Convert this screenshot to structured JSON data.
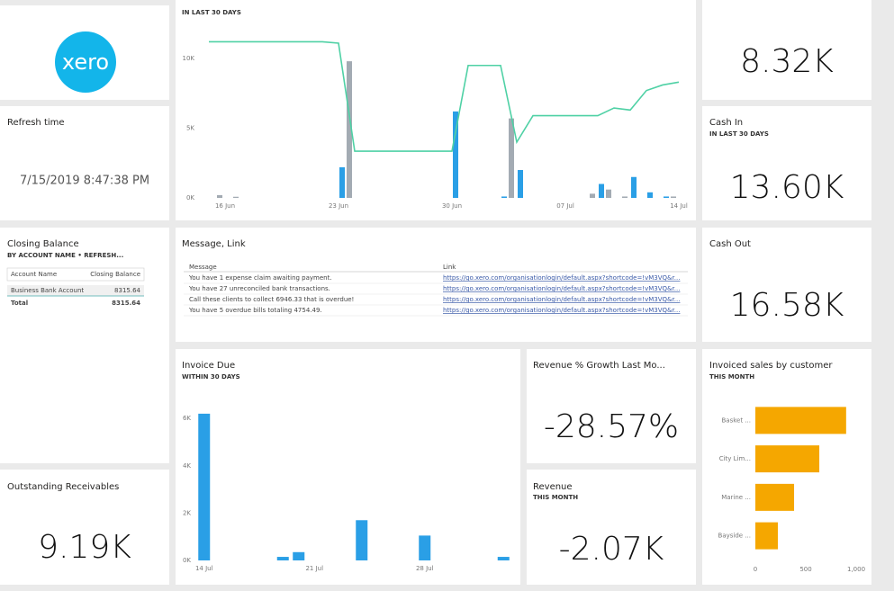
{
  "logo": "xero",
  "refresh_card": {
    "title": "Refresh time",
    "value": "7/15/2019 8:47:38 PM"
  },
  "cards": [
    {
      "value": "8.32K"
    },
    {
      "title": "Cash In",
      "subtitle": "IN LAST 30 DAYS",
      "value": "13.60K"
    },
    {
      "title": "Cash Out",
      "value": "16.58K"
    },
    {
      "title": "Outstanding Receivables",
      "value": "9.19K"
    },
    {
      "title": "Revenue % Growth Last Mo...",
      "value": "-28.57%"
    },
    {
      "title": "Revenue",
      "subtitle": "THIS MONTH",
      "value": "-2.07K"
    }
  ],
  "closing_balance": {
    "title": "Closing Balance",
    "subtitle": "BY ACCOUNT NAME  •  REFRESH...",
    "headers": [
      "Account Name",
      "Closing Balance"
    ],
    "rows": [
      [
        "Business Bank Account",
        "8315.64"
      ]
    ],
    "total": [
      "Total",
      "8315.64"
    ]
  },
  "message_link": {
    "title": "Message, Link",
    "headers": [
      "Message",
      "Link"
    ],
    "rows": [
      [
        "You have 1 expense claim awaiting payment.",
        "https://go.xero.com/organisationlogin/default.aspx?shortcode=!vM3VQ&r..."
      ],
      [
        "You have 27 unreconciled bank transactions.",
        "https://go.xero.com/organisationlogin/default.aspx?shortcode=!vM3VQ&r..."
      ],
      [
        "Call these clients to collect  6946.33 that is overdue!",
        "https://go.xero.com/organisationlogin/default.aspx?shortcode=!vM3VQ&r..."
      ],
      [
        "You have 5 overdue bills totaling 4754.49.",
        "https://go.xero.com/organisationlogin/default.aspx?shortcode=!vM3VQ&r..."
      ]
    ]
  },
  "chart_data": [
    {
      "type": "combo",
      "subtitle": "IN LAST 30 DAYS",
      "categories": [
        null,
        "16 Jun",
        null,
        null,
        null,
        null,
        null,
        null,
        "23 Jun",
        null,
        null,
        null,
        null,
        null,
        null,
        "30 Jun",
        null,
        null,
        null,
        null,
        null,
        null,
        "07 Jul",
        null,
        null,
        null,
        null,
        null,
        null,
        "14 Jul"
      ],
      "series": [
        {
          "type": "bar",
          "color": "#2a9fe6",
          "values": [
            0,
            0,
            0,
            0,
            0,
            0,
            0,
            0,
            2200,
            0,
            0,
            0,
            0,
            0,
            0,
            6200,
            0,
            0,
            100,
            2000,
            0,
            0,
            0,
            0,
            1000,
            0,
            1500,
            400,
            100,
            0
          ]
        },
        {
          "type": "bar",
          "color": "#a3abb3",
          "values": [
            200,
            80,
            0,
            0,
            0,
            0,
            0,
            0,
            9800,
            0,
            0,
            0,
            0,
            0,
            0,
            0,
            0,
            0,
            5700,
            0,
            0,
            0,
            0,
            300,
            600,
            100,
            0,
            0,
            100,
            0
          ]
        },
        {
          "type": "line",
          "color": "#4fd1a5",
          "values": [
            11200,
            11200,
            11200,
            11200,
            11200,
            11200,
            11200,
            11200,
            11100,
            3350,
            3350,
            3350,
            3350,
            3350,
            3350,
            3350,
            9500,
            9500,
            9500,
            4000,
            5900,
            5900,
            5900,
            5900,
            5900,
            6450,
            6300,
            7700,
            8100,
            8300
          ]
        }
      ],
      "ylim": [
        0,
        12000
      ],
      "yticks": [
        {
          "value": 0,
          "label": "0K"
        },
        {
          "value": 5000,
          "label": "5K"
        },
        {
          "value": 10000,
          "label": "10K"
        }
      ]
    },
    {
      "type": "bar",
      "title": "Invoice Due",
      "subtitle": "WITHIN 30 DAYS",
      "color": "#2a9fe6",
      "categories": [
        "14 Jul",
        null,
        null,
        null,
        null,
        null,
        null,
        "21 Jul",
        null,
        null,
        null,
        null,
        null,
        null,
        "28 Jul",
        null,
        null,
        null,
        null,
        null
      ],
      "values": [
        6200,
        0,
        0,
        0,
        0,
        150,
        350,
        0,
        0,
        0,
        1700,
        0,
        0,
        0,
        1050,
        0,
        0,
        0,
        0,
        150
      ],
      "ylim": [
        0,
        6500
      ],
      "yticks": [
        {
          "value": 0,
          "label": "0K"
        },
        {
          "value": 2000,
          "label": "2K"
        },
        {
          "value": 4000,
          "label": "4K"
        },
        {
          "value": 6000,
          "label": "6K"
        }
      ]
    },
    {
      "type": "barh",
      "title": "Invoiced sales by customer",
      "subtitle": "THIS MONTH",
      "color": "#f5a700",
      "categories": [
        "Basket ...",
        "City Lim...",
        "Marine ...",
        "Bayside ..."
      ],
      "values": [
        900,
        634,
        384,
        223
      ],
      "xlim": [
        0,
        1080
      ],
      "xticks": [
        0,
        500,
        {
          "value": 1000,
          "label": "1,000"
        }
      ]
    }
  ]
}
